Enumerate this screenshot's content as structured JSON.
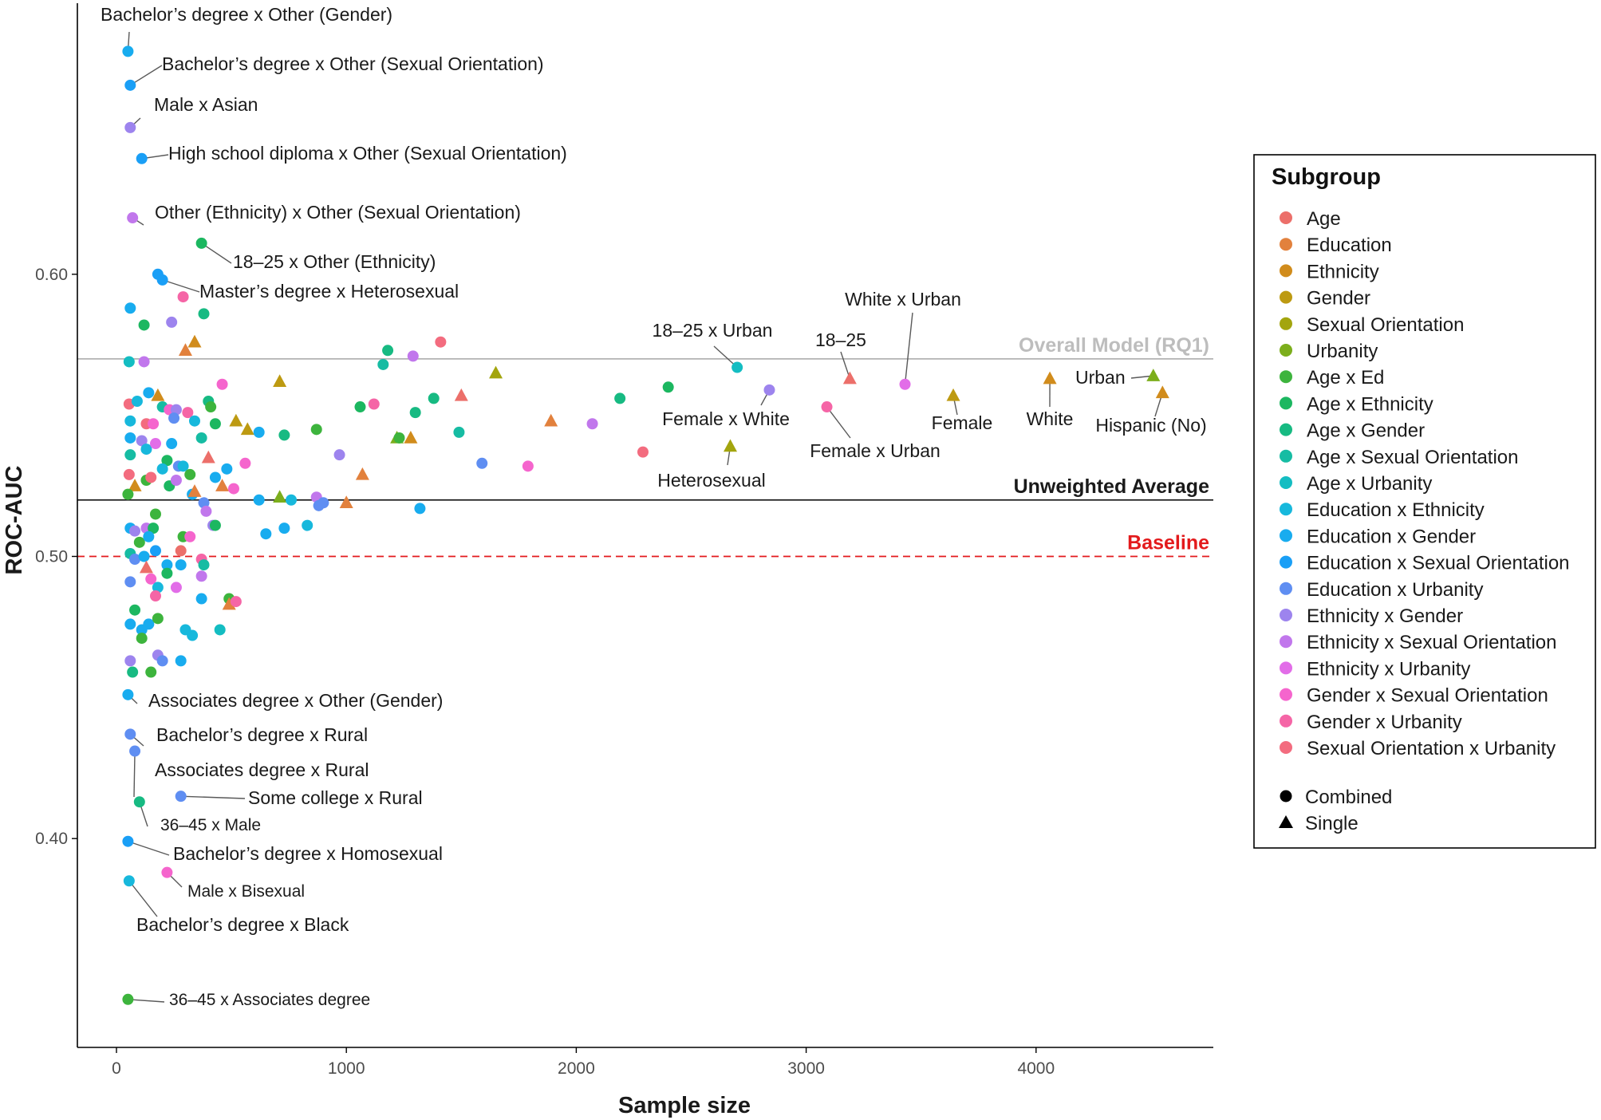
{
  "chart_data": {
    "type": "scatter",
    "xlabel": "Sample size",
    "ylabel": "ROC-AUC",
    "xlim": [
      -200,
      4750
    ],
    "ylim": [
      0.323,
      0.7
    ],
    "x_ticks": [
      0,
      1000,
      2000,
      3000,
      4000
    ],
    "x_tick_labels": [
      "0",
      "1000",
      "2000",
      "3000",
      "4000"
    ],
    "y_ticks": [
      0.4,
      0.5,
      0.6
    ],
    "y_tick_labels": [
      "0.40",
      "0.50",
      "0.60"
    ],
    "grid": false,
    "reference_lines": [
      {
        "label": "Overall Model (RQ1)",
        "value": 0.57,
        "color": "#b3b3b3",
        "style": "solid"
      },
      {
        "label": "Unweighted Average",
        "value": 0.52,
        "color": "#1a1a1a",
        "style": "solid"
      },
      {
        "label": "Baseline",
        "value": 0.5,
        "color": "#e31a1c",
        "style": "dashed"
      }
    ],
    "legend": {
      "title": "Subgroup",
      "position": "right",
      "entries": [
        {
          "name": "Age",
          "color": "#ec6f6a"
        },
        {
          "name": "Education",
          "color": "#e2813d"
        },
        {
          "name": "Ethnicity",
          "color": "#d18c1c"
        },
        {
          "name": "Gender",
          "color": "#bd9a12"
        },
        {
          "name": "Sexual Orientation",
          "color": "#a3a50e"
        },
        {
          "name": "Urbanity",
          "color": "#7cae1c"
        },
        {
          "name": "Age x Ed",
          "color": "#3db43d"
        },
        {
          "name": "Age x Ethnicity",
          "color": "#1cb760"
        },
        {
          "name": "Age x Gender",
          "color": "#17ba82"
        },
        {
          "name": "Age x Sexual Orientation",
          "color": "#16bca3"
        },
        {
          "name": "Age x Urbanity",
          "color": "#14bdc2"
        },
        {
          "name": "Education x Ethnicity",
          "color": "#17b8dc"
        },
        {
          "name": "Education x Gender",
          "color": "#18acef"
        },
        {
          "name": "Education x Sexual Orientation",
          "color": "#1a9ff6"
        },
        {
          "name": "Education x Urbanity",
          "color": "#5f8ef2"
        },
        {
          "name": "Ethnicity x Gender",
          "color": "#9d84ee"
        },
        {
          "name": "Ethnicity x Sexual Orientation",
          "color": "#c177ec"
        },
        {
          "name": "Ethnicity x Urbanity",
          "color": "#e26de8"
        },
        {
          "name": "Gender x Sexual Orientation",
          "color": "#f565cd"
        },
        {
          "name": "Gender x Urbanity",
          "color": "#f565a6"
        },
        {
          "name": "Sexual Orientation x Urbanity",
          "color": "#f36c7f"
        }
      ],
      "shapes": [
        {
          "name": "Combined",
          "shape": "circle"
        },
        {
          "name": "Single",
          "shape": "triangle"
        }
      ]
    },
    "labeled_points": [
      {
        "label": "Bachelor’s degree  x Other (Gender)",
        "x": 50,
        "y": 0.679,
        "group": "Education x Gender",
        "shape": "circle"
      },
      {
        "label": "Bachelor’s degree  x Other (Sexual Orientation)",
        "x": 60,
        "y": 0.667,
        "group": "Education x Sexual Orientation",
        "shape": "circle"
      },
      {
        "label": "Male x Asian",
        "x": 60,
        "y": 0.652,
        "group": "Ethnicity x Gender",
        "shape": "circle"
      },
      {
        "label": "High school diploma  x Other (Sexual Orientation)",
        "x": 110,
        "y": 0.641,
        "group": "Education x Sexual Orientation",
        "shape": "circle"
      },
      {
        "label": "Other (Ethnicity) x Other (Sexual Orientation)",
        "x": 70,
        "y": 0.62,
        "group": "Ethnicity x Sexual Orientation",
        "shape": "circle"
      },
      {
        "label": "18–25 x Other (Ethnicity)",
        "x": 370,
        "y": 0.611,
        "group": "Age x Ethnicity",
        "shape": "circle"
      },
      {
        "label": "Master’s degree x Heterosexual",
        "x": 200,
        "y": 0.598,
        "group": "Education x Sexual Orientation",
        "shape": "circle"
      },
      {
        "label": "18–25 x Urban",
        "x": 2700,
        "y": 0.567,
        "group": "Age x Urbanity",
        "shape": "circle"
      },
      {
        "label": "Female x White",
        "x": 2840,
        "y": 0.559,
        "group": "Ethnicity x Gender",
        "shape": "circle"
      },
      {
        "label": "Heterosexual",
        "x": 2670,
        "y": 0.539,
        "group": "Sexual Orientation",
        "shape": "triangle"
      },
      {
        "label": "18–25",
        "x": 3190,
        "y": 0.563,
        "group": "Age",
        "shape": "triangle"
      },
      {
        "label": "White x Urban",
        "x": 3430,
        "y": 0.561,
        "group": "Ethnicity x Urbanity",
        "shape": "circle"
      },
      {
        "label": "Female x Urban",
        "x": 3090,
        "y": 0.553,
        "group": "Gender x Urbanity",
        "shape": "circle"
      },
      {
        "label": "Female",
        "x": 3640,
        "y": 0.557,
        "group": "Gender",
        "shape": "triangle"
      },
      {
        "label": "White",
        "x": 4060,
        "y": 0.563,
        "group": "Ethnicity",
        "shape": "triangle"
      },
      {
        "label": "Urban",
        "x": 4510,
        "y": 0.564,
        "group": "Urbanity",
        "shape": "triangle"
      },
      {
        "label": "Hispanic (No)",
        "x": 4550,
        "y": 0.558,
        "group": "Ethnicity",
        "shape": "triangle"
      },
      {
        "label": "Associates degree  x Other (Gender)",
        "x": 50,
        "y": 0.451,
        "group": "Education x Gender",
        "shape": "circle"
      },
      {
        "label": "Bachelor’s degree  x Rural",
        "x": 60,
        "y": 0.437,
        "group": "Education x Urbanity",
        "shape": "circle"
      },
      {
        "label": "Associates degree  x Rural",
        "x": 80,
        "y": 0.431,
        "group": "Education x Urbanity",
        "shape": "circle"
      },
      {
        "label": "Some college  x Rural",
        "x": 280,
        "y": 0.415,
        "group": "Education x Urbanity",
        "shape": "circle"
      },
      {
        "label": "36–45 x Male",
        "x": 100,
        "y": 0.413,
        "group": "Age x Gender",
        "shape": "circle"
      },
      {
        "label": "Bachelor’s degree  x Homosexual",
        "x": 50,
        "y": 0.399,
        "group": "Education x Sexual Orientation",
        "shape": "circle"
      },
      {
        "label": "Male x Bisexual",
        "x": 220,
        "y": 0.388,
        "group": "Gender x Sexual Orientation",
        "shape": "circle"
      },
      {
        "label": "Bachelor’s degree  x Black",
        "x": 55,
        "y": 0.385,
        "group": "Education x Ethnicity",
        "shape": "circle"
      },
      {
        "label": "36–45 x Associates degree",
        "x": 50,
        "y": 0.343,
        "group": "Age x Ed",
        "shape": "circle"
      }
    ],
    "points": [
      {
        "x": 55,
        "y": 0.569,
        "g": 10
      },
      {
        "x": 60,
        "y": 0.588,
        "g": 12
      },
      {
        "x": 120,
        "y": 0.582,
        "g": 7
      },
      {
        "x": 240,
        "y": 0.583,
        "g": 15
      },
      {
        "x": 290,
        "y": 0.592,
        "g": 19
      },
      {
        "x": 380,
        "y": 0.586,
        "g": 8
      },
      {
        "x": 180,
        "y": 0.6,
        "g": 13
      },
      {
        "x": 120,
        "y": 0.569,
        "g": 16
      },
      {
        "x": 300,
        "y": 0.573,
        "g": 1,
        "s": 1
      },
      {
        "x": 340,
        "y": 0.576,
        "g": 2,
        "s": 1
      },
      {
        "x": 55,
        "y": 0.554,
        "g": 20
      },
      {
        "x": 90,
        "y": 0.555,
        "g": 11
      },
      {
        "x": 140,
        "y": 0.558,
        "g": 12
      },
      {
        "x": 180,
        "y": 0.557,
        "g": 2,
        "s": 1
      },
      {
        "x": 200,
        "y": 0.553,
        "g": 9
      },
      {
        "x": 230,
        "y": 0.552,
        "g": 18
      },
      {
        "x": 260,
        "y": 0.552,
        "g": 15
      },
      {
        "x": 310,
        "y": 0.551,
        "g": 19
      },
      {
        "x": 400,
        "y": 0.555,
        "g": 8
      },
      {
        "x": 410,
        "y": 0.553,
        "g": 6
      },
      {
        "x": 460,
        "y": 0.561,
        "g": 18
      },
      {
        "x": 60,
        "y": 0.548,
        "g": 11
      },
      {
        "x": 130,
        "y": 0.547,
        "g": 20
      },
      {
        "x": 160,
        "y": 0.547,
        "g": 18
      },
      {
        "x": 250,
        "y": 0.549,
        "g": 14
      },
      {
        "x": 340,
        "y": 0.548,
        "g": 11
      },
      {
        "x": 430,
        "y": 0.547,
        "g": 7
      },
      {
        "x": 520,
        "y": 0.548,
        "g": 3,
        "s": 1
      },
      {
        "x": 570,
        "y": 0.545,
        "g": 3,
        "s": 1
      },
      {
        "x": 620,
        "y": 0.544,
        "g": 12
      },
      {
        "x": 730,
        "y": 0.543,
        "g": 8
      },
      {
        "x": 870,
        "y": 0.545,
        "g": 6
      },
      {
        "x": 710,
        "y": 0.562,
        "g": 3,
        "s": 1
      },
      {
        "x": 60,
        "y": 0.536,
        "g": 9
      },
      {
        "x": 110,
        "y": 0.541,
        "g": 15
      },
      {
        "x": 130,
        "y": 0.538,
        "g": 11
      },
      {
        "x": 170,
        "y": 0.54,
        "g": 17
      },
      {
        "x": 220,
        "y": 0.534,
        "g": 7
      },
      {
        "x": 240,
        "y": 0.54,
        "g": 12
      },
      {
        "x": 370,
        "y": 0.542,
        "g": 9
      },
      {
        "x": 400,
        "y": 0.535,
        "g": 0,
        "s": 1
      },
      {
        "x": 560,
        "y": 0.533,
        "g": 18
      },
      {
        "x": 480,
        "y": 0.531,
        "g": 12
      },
      {
        "x": 60,
        "y": 0.542,
        "g": 12
      },
      {
        "x": 55,
        "y": 0.529,
        "g": 20
      },
      {
        "x": 80,
        "y": 0.525,
        "g": 2,
        "s": 1
      },
      {
        "x": 130,
        "y": 0.527,
        "g": 6
      },
      {
        "x": 150,
        "y": 0.528,
        "g": 20
      },
      {
        "x": 200,
        "y": 0.531,
        "g": 11
      },
      {
        "x": 230,
        "y": 0.525,
        "g": 7
      },
      {
        "x": 260,
        "y": 0.527,
        "g": 16
      },
      {
        "x": 270,
        "y": 0.532,
        "g": 14
      },
      {
        "x": 290,
        "y": 0.532,
        "g": 11
      },
      {
        "x": 320,
        "y": 0.529,
        "g": 6
      },
      {
        "x": 330,
        "y": 0.522,
        "g": 12
      },
      {
        "x": 340,
        "y": 0.523,
        "g": 1,
        "s": 1
      },
      {
        "x": 430,
        "y": 0.528,
        "g": 12
      },
      {
        "x": 460,
        "y": 0.525,
        "g": 1,
        "s": 1
      },
      {
        "x": 510,
        "y": 0.524,
        "g": 18
      },
      {
        "x": 50,
        "y": 0.522,
        "g": 6
      },
      {
        "x": 380,
        "y": 0.519,
        "g": 14
      },
      {
        "x": 390,
        "y": 0.516,
        "g": 16
      },
      {
        "x": 420,
        "y": 0.511,
        "g": 15
      },
      {
        "x": 430,
        "y": 0.511,
        "g": 7
      },
      {
        "x": 620,
        "y": 0.52,
        "g": 12
      },
      {
        "x": 710,
        "y": 0.521,
        "g": 5,
        "s": 1
      },
      {
        "x": 760,
        "y": 0.52,
        "g": 11
      },
      {
        "x": 870,
        "y": 0.521,
        "g": 16
      },
      {
        "x": 880,
        "y": 0.518,
        "g": 14
      },
      {
        "x": 900,
        "y": 0.519,
        "g": 14
      },
      {
        "x": 1000,
        "y": 0.519,
        "g": 1,
        "s": 1
      },
      {
        "x": 1320,
        "y": 0.517,
        "g": 12
      },
      {
        "x": 650,
        "y": 0.508,
        "g": 12
      },
      {
        "x": 730,
        "y": 0.51,
        "g": 12
      },
      {
        "x": 830,
        "y": 0.511,
        "g": 11
      },
      {
        "x": 60,
        "y": 0.51,
        "g": 12
      },
      {
        "x": 80,
        "y": 0.509,
        "g": 15
      },
      {
        "x": 130,
        "y": 0.51,
        "g": 16
      },
      {
        "x": 160,
        "y": 0.51,
        "g": 7
      },
      {
        "x": 170,
        "y": 0.515,
        "g": 6
      },
      {
        "x": 290,
        "y": 0.507,
        "g": 6
      },
      {
        "x": 320,
        "y": 0.507,
        "g": 18
      },
      {
        "x": 100,
        "y": 0.505,
        "g": 6
      },
      {
        "x": 140,
        "y": 0.507,
        "g": 12
      },
      {
        "x": 60,
        "y": 0.501,
        "g": 9
      },
      {
        "x": 80,
        "y": 0.499,
        "g": 14
      },
      {
        "x": 120,
        "y": 0.5,
        "g": 12
      },
      {
        "x": 130,
        "y": 0.496,
        "g": 0,
        "s": 1
      },
      {
        "x": 170,
        "y": 0.502,
        "g": 13
      },
      {
        "x": 220,
        "y": 0.497,
        "g": 12
      },
      {
        "x": 280,
        "y": 0.497,
        "g": 12
      },
      {
        "x": 280,
        "y": 0.502,
        "g": 0
      },
      {
        "x": 370,
        "y": 0.499,
        "g": 19
      },
      {
        "x": 380,
        "y": 0.497,
        "g": 9
      },
      {
        "x": 60,
        "y": 0.491,
        "g": 14
      },
      {
        "x": 150,
        "y": 0.492,
        "g": 18
      },
      {
        "x": 220,
        "y": 0.494,
        "g": 7
      },
      {
        "x": 370,
        "y": 0.493,
        "g": 16
      },
      {
        "x": 180,
        "y": 0.489,
        "g": 11
      },
      {
        "x": 260,
        "y": 0.489,
        "g": 17
      },
      {
        "x": 170,
        "y": 0.486,
        "g": 19
      },
      {
        "x": 370,
        "y": 0.485,
        "g": 12
      },
      {
        "x": 490,
        "y": 0.485,
        "g": 6
      },
      {
        "x": 490,
        "y": 0.483,
        "g": 1,
        "s": 1
      },
      {
        "x": 520,
        "y": 0.484,
        "g": 19
      },
      {
        "x": 80,
        "y": 0.481,
        "g": 7
      },
      {
        "x": 60,
        "y": 0.476,
        "g": 12
      },
      {
        "x": 110,
        "y": 0.474,
        "g": 12
      },
      {
        "x": 140,
        "y": 0.476,
        "g": 12
      },
      {
        "x": 180,
        "y": 0.478,
        "g": 6
      },
      {
        "x": 300,
        "y": 0.474,
        "g": 11
      },
      {
        "x": 330,
        "y": 0.472,
        "g": 11
      },
      {
        "x": 450,
        "y": 0.474,
        "g": 10
      },
      {
        "x": 110,
        "y": 0.471,
        "g": 6
      },
      {
        "x": 60,
        "y": 0.463,
        "g": 15
      },
      {
        "x": 180,
        "y": 0.465,
        "g": 15
      },
      {
        "x": 200,
        "y": 0.463,
        "g": 14
      },
      {
        "x": 280,
        "y": 0.463,
        "g": 12
      },
      {
        "x": 70,
        "y": 0.459,
        "g": 8
      },
      {
        "x": 150,
        "y": 0.459,
        "g": 6
      },
      {
        "x": 1060,
        "y": 0.553,
        "g": 7
      },
      {
        "x": 1120,
        "y": 0.554,
        "g": 19
      },
      {
        "x": 1180,
        "y": 0.573,
        "g": 8
      },
      {
        "x": 1160,
        "y": 0.568,
        "g": 9
      },
      {
        "x": 1220,
        "y": 0.542,
        "g": 5,
        "s": 1
      },
      {
        "x": 1230,
        "y": 0.542,
        "g": 6
      },
      {
        "x": 1280,
        "y": 0.542,
        "g": 2,
        "s": 1
      },
      {
        "x": 1290,
        "y": 0.571,
        "g": 16
      },
      {
        "x": 1300,
        "y": 0.551,
        "g": 8
      },
      {
        "x": 1380,
        "y": 0.556,
        "g": 8
      },
      {
        "x": 1410,
        "y": 0.576,
        "g": 20
      },
      {
        "x": 1490,
        "y": 0.544,
        "g": 9
      },
      {
        "x": 1500,
        "y": 0.557,
        "g": 0,
        "s": 1
      },
      {
        "x": 1590,
        "y": 0.533,
        "g": 14
      },
      {
        "x": 1650,
        "y": 0.565,
        "g": 4,
        "s": 1
      },
      {
        "x": 1790,
        "y": 0.532,
        "g": 18
      },
      {
        "x": 1890,
        "y": 0.548,
        "g": 1,
        "s": 1
      },
      {
        "x": 2070,
        "y": 0.547,
        "g": 16
      },
      {
        "x": 2190,
        "y": 0.556,
        "g": 8
      },
      {
        "x": 2290,
        "y": 0.537,
        "g": 20
      },
      {
        "x": 2400,
        "y": 0.56,
        "g": 7
      },
      {
        "x": 1070,
        "y": 0.529,
        "g": 1,
        "s": 1
      },
      {
        "x": 970,
        "y": 0.536,
        "g": 15
      }
    ]
  }
}
